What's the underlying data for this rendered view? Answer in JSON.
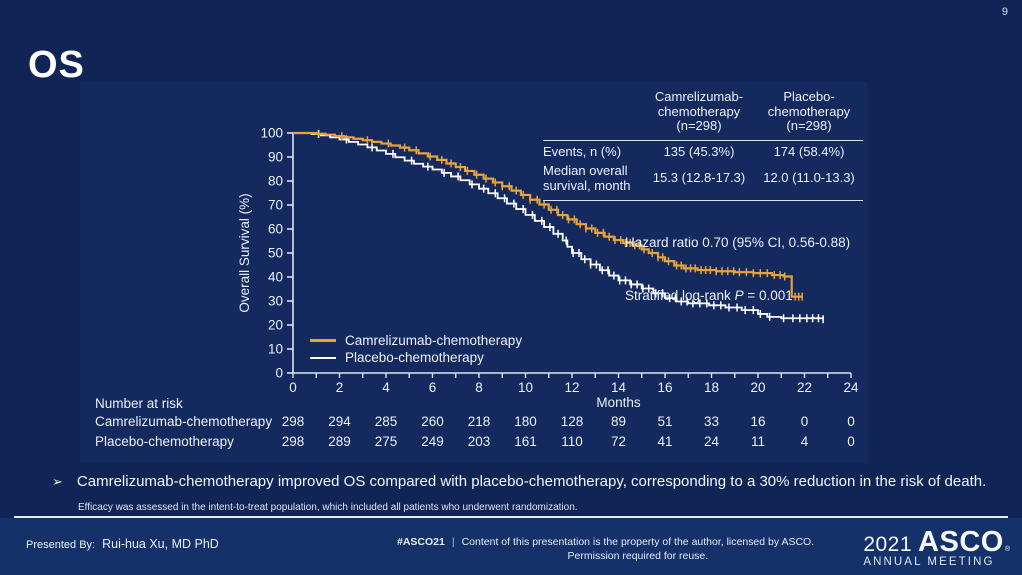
{
  "slide": {
    "number": "9",
    "title": "OS"
  },
  "colors": {
    "background": "#102456",
    "chart_bg": "#142A5E",
    "footer_bg": "#15316A",
    "orange": "#E8A33C",
    "white": "#FFFFFF",
    "axis": "#D9E3F2",
    "text": "#EAF1FA"
  },
  "stats_table": {
    "columns": [
      {
        "lines": [
          "Camrelizumab-",
          "chemotherapy",
          "(n=298)"
        ]
      },
      {
        "lines": [
          "Placebo-",
          "chemotherapy",
          "(n=298)"
        ]
      }
    ],
    "rows": [
      {
        "label": "Events, n (%)",
        "values": [
          "135 (45.3%)",
          "174 (58.4%)"
        ]
      },
      {
        "label": "Median overall survival, month",
        "values": [
          "15.3 (12.8-17.3)",
          "12.0 (11.0-13.3)"
        ]
      }
    ],
    "hazard_ratio": "Hazard ratio 0.70 (95% CI, 0.56-0.88)",
    "logrank_prefix": "Stratified log-rank ",
    "logrank_stat": "P",
    "logrank_suffix": " = 0.001"
  },
  "legend": {
    "items": [
      {
        "label": "Camrelizumab-chemotherapy",
        "color": "#E8A33C"
      },
      {
        "label": "Placebo-chemotherapy",
        "color": "#FFFFFF"
      }
    ]
  },
  "chart_data": {
    "type": "line",
    "subtype": "kaplan-meier-step",
    "title": "OS",
    "xlabel": "Months",
    "ylabel": "Overall Survival (%)",
    "xlim": [
      0,
      24
    ],
    "ylim": [
      0,
      100
    ],
    "xticks": [
      0,
      2,
      4,
      6,
      8,
      10,
      12,
      14,
      16,
      18,
      20,
      22,
      24
    ],
    "yticks": [
      0,
      10,
      20,
      30,
      40,
      50,
      60,
      70,
      80,
      90,
      100
    ],
    "grid": false,
    "legend_position": "inside-bottom-left",
    "series": [
      {
        "name": "Camrelizumab-chemotherapy",
        "color": "#E8A33C",
        "points": [
          [
            0,
            100
          ],
          [
            1.0,
            99.7
          ],
          [
            1.4,
            99.3
          ],
          [
            1.8,
            98.7
          ],
          [
            2.2,
            98.2
          ],
          [
            2.6,
            97.6
          ],
          [
            3.0,
            97.0
          ],
          [
            3.4,
            96.3
          ],
          [
            3.8,
            95.6
          ],
          [
            4.2,
            94.8
          ],
          [
            4.6,
            93.9
          ],
          [
            5.0,
            92.8
          ],
          [
            5.4,
            91.5
          ],
          [
            5.8,
            90.2
          ],
          [
            6.2,
            88.8
          ],
          [
            6.6,
            87.3
          ],
          [
            7.0,
            85.8
          ],
          [
            7.4,
            84.2
          ],
          [
            7.8,
            82.6
          ],
          [
            8.2,
            81.0
          ],
          [
            8.6,
            79.4
          ],
          [
            9.0,
            77.8
          ],
          [
            9.4,
            76.0
          ],
          [
            9.8,
            74.2
          ],
          [
            10.2,
            72.2
          ],
          [
            10.6,
            70.2
          ],
          [
            11.0,
            68.0
          ],
          [
            11.4,
            65.8
          ],
          [
            11.8,
            64.0
          ],
          [
            12.2,
            62.0
          ],
          [
            12.6,
            60.2
          ],
          [
            13.0,
            58.4
          ],
          [
            13.4,
            56.8
          ],
          [
            13.8,
            55.4
          ],
          [
            14.2,
            54.2
          ],
          [
            14.6,
            53.2
          ],
          [
            15.0,
            51.5
          ],
          [
            15.3,
            50.0
          ],
          [
            15.7,
            48.2
          ],
          [
            16.0,
            46.6
          ],
          [
            16.4,
            44.8
          ],
          [
            16.8,
            43.6
          ],
          [
            17.4,
            42.9
          ],
          [
            18.2,
            42.4
          ],
          [
            19.0,
            42.0
          ],
          [
            19.8,
            41.6
          ],
          [
            20.6,
            40.8
          ],
          [
            21.1,
            40.2
          ],
          [
            21.45,
            31.8
          ],
          [
            21.9,
            31.8
          ]
        ],
        "censor_months": [
          2.1,
          3.2,
          4.1,
          4.8,
          5.3,
          5.9,
          6.4,
          6.8,
          7.2,
          7.5,
          7.9,
          8.3,
          8.7,
          9.0,
          9.3,
          9.6,
          9.9,
          10.2,
          10.5,
          10.8,
          11.1,
          11.35,
          11.6,
          11.85,
          12.1,
          12.35,
          12.6,
          12.85,
          13.1,
          13.35,
          13.6,
          13.85,
          14.1,
          14.3,
          14.5,
          14.7,
          14.9,
          15.1,
          15.45,
          15.7,
          15.9,
          16.15,
          16.5,
          16.7,
          16.9,
          17.1,
          17.3,
          17.55,
          17.75,
          17.95,
          18.2,
          18.45,
          18.7,
          18.95,
          19.2,
          19.5,
          19.8,
          20.1,
          20.4,
          20.7,
          20.95,
          21.15,
          21.6,
          21.75,
          21.9
        ]
      },
      {
        "name": "Placebo-chemotherapy",
        "color": "#FFFFFF",
        "points": [
          [
            0,
            100
          ],
          [
            0.8,
            99.6
          ],
          [
            1.2,
            99.0
          ],
          [
            1.6,
            98.2
          ],
          [
            2.0,
            97.3
          ],
          [
            2.4,
            96.3
          ],
          [
            2.8,
            95.2
          ],
          [
            3.2,
            94.0
          ],
          [
            3.6,
            92.7
          ],
          [
            4.0,
            91.3
          ],
          [
            4.4,
            89.9
          ],
          [
            4.8,
            88.5
          ],
          [
            5.2,
            87.2
          ],
          [
            5.6,
            86.0
          ],
          [
            6.0,
            84.8
          ],
          [
            6.4,
            83.4
          ],
          [
            6.8,
            81.9
          ],
          [
            7.2,
            80.3
          ],
          [
            7.6,
            78.6
          ],
          [
            8.0,
            76.8
          ],
          [
            8.4,
            74.9
          ],
          [
            8.8,
            72.8
          ],
          [
            9.2,
            70.6
          ],
          [
            9.6,
            68.3
          ],
          [
            10.0,
            65.9
          ],
          [
            10.4,
            63.4
          ],
          [
            10.8,
            60.8
          ],
          [
            11.2,
            58.0
          ],
          [
            11.6,
            55.2
          ],
          [
            11.8,
            52.6
          ],
          [
            12.0,
            50.0
          ],
          [
            12.4,
            47.4
          ],
          [
            12.8,
            45.2
          ],
          [
            13.2,
            42.8
          ],
          [
            13.6,
            40.6
          ],
          [
            14.0,
            38.6
          ],
          [
            14.5,
            36.9
          ],
          [
            15.0,
            35.2
          ],
          [
            15.5,
            33.2
          ],
          [
            16.0,
            31.2
          ],
          [
            16.5,
            29.8
          ],
          [
            17.0,
            29.0
          ],
          [
            17.9,
            28.2
          ],
          [
            18.6,
            27.3
          ],
          [
            19.3,
            26.2
          ],
          [
            20.0,
            24.6
          ],
          [
            20.4,
            23.4
          ],
          [
            21.0,
            22.8
          ],
          [
            22.8,
            22.4
          ]
        ],
        "censor_months": [
          1.1,
          2.3,
          3.4,
          4.3,
          5.1,
          5.8,
          6.5,
          7.1,
          7.7,
          8.2,
          8.7,
          9.1,
          9.5,
          9.9,
          10.3,
          10.7,
          11.05,
          11.4,
          11.75,
          12.05,
          12.3,
          12.55,
          12.8,
          13.05,
          13.3,
          13.55,
          13.8,
          14.05,
          14.3,
          14.55,
          14.8,
          15.05,
          15.3,
          15.6,
          15.9,
          16.2,
          16.45,
          16.7,
          16.95,
          17.2,
          17.5,
          17.8,
          18.1,
          18.4,
          18.75,
          19.1,
          19.45,
          19.8,
          20.1,
          20.5,
          21.1,
          21.5,
          21.8,
          22.1,
          22.35,
          22.6,
          22.8
        ]
      }
    ],
    "number_at_risk": {
      "label": "Number at risk",
      "months": [
        0,
        2,
        4,
        6,
        8,
        10,
        12,
        14,
        16,
        18,
        20,
        22,
        24
      ],
      "rows": [
        {
          "name": "Camrelizumab-chemotherapy",
          "values": [
            298,
            294,
            285,
            260,
            218,
            180,
            128,
            89,
            51,
            33,
            16,
            0,
            0
          ]
        },
        {
          "name": "Placebo-chemotherapy",
          "values": [
            298,
            289,
            275,
            249,
            203,
            161,
            110,
            72,
            41,
            24,
            11,
            4,
            0
          ]
        }
      ]
    }
  },
  "bullet": {
    "marker": "➢",
    "text": "Camrelizumab-chemotherapy improved OS compared with placebo-chemotherapy, corresponding to a 30% reduction in the risk of death."
  },
  "footnote": "Efficacy was assessed in the intent-to-treat population, which included all patients who underwent randomization.",
  "footer": {
    "presented_by_label": "Presented By:",
    "presenter": "Rui-hua Xu, MD PhD",
    "hashtag": "#ASCO21",
    "separator": "|",
    "rights_line1": "Content of this presentation is the property of the author, licensed by ASCO.",
    "rights_line2": "Permission required for reuse.",
    "logo_year": "2021",
    "logo_name": "ASCO",
    "logo_mark": "®",
    "logo_sub": "ANNUAL MEETING"
  }
}
